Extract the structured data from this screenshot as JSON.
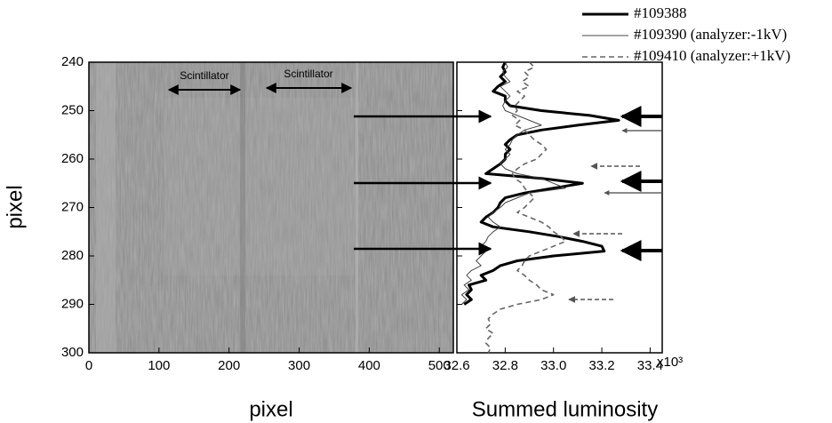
{
  "chart_data": [
    {
      "type": "image",
      "xlabel": "pixel",
      "ylabel": "pixel",
      "xlim": [
        0,
        520
      ],
      "xticks": [
        0,
        100,
        200,
        300,
        400,
        500
      ],
      "ylim": [
        240,
        300
      ],
      "yticks": [
        240,
        250,
        260,
        270,
        280,
        290,
        300
      ],
      "y_inverted": true,
      "annotations": [
        "Scintillator",
        "Scintillator"
      ]
    },
    {
      "type": "line",
      "xlabel": "Summed luminosity",
      "x_multiplier": "x10³",
      "xlim": [
        32.6,
        33.45
      ],
      "xticks": [
        32.6,
        32.8,
        {
          "value": 33,
          "label": "33.0"
        },
        33.2,
        33.4
      ],
      "ylim": [
        240,
        300
      ],
      "yticks": [
        240,
        250,
        260,
        270,
        280,
        290,
        300
      ],
      "y_inverted": true,
      "legend": "upper right",
      "y": [
        240,
        241,
        242,
        243,
        244,
        245,
        246,
        247,
        248,
        249,
        250,
        251,
        252,
        253,
        254,
        255,
        256,
        257,
        258,
        259,
        260,
        261,
        262,
        263,
        264,
        265,
        266,
        267,
        268,
        269,
        270,
        271,
        272,
        273,
        274,
        275,
        276,
        277,
        278,
        279,
        280,
        281,
        282,
        283,
        284,
        285,
        286,
        287,
        288,
        289,
        290,
        291,
        292,
        293,
        294,
        295,
        296,
        297,
        298,
        299,
        300
      ],
      "series": [
        {
          "name": "#109388",
          "color": "#000000",
          "width": 3,
          "dashed": false,
          "values": [
            32.8,
            32.79,
            32.8,
            32.78,
            32.8,
            32.77,
            32.75,
            32.8,
            32.8,
            32.82,
            32.95,
            33.15,
            33.27,
            33.1,
            32.95,
            32.85,
            32.82,
            32.8,
            32.82,
            32.8,
            32.8,
            32.78,
            32.75,
            32.72,
            32.95,
            33.12,
            33.0,
            32.88,
            32.8,
            32.78,
            32.77,
            32.75,
            32.72,
            32.7,
            32.75,
            32.9,
            33.02,
            33.12,
            33.2,
            33.21,
            33.0,
            32.85,
            32.78,
            32.75,
            32.7,
            32.72,
            32.65,
            32.66,
            32.64,
            32.66,
            32.63,
            null,
            null,
            null,
            null,
            null,
            null,
            null,
            null,
            null,
            null
          ]
        },
        {
          "name": "#109390 (analyzer:-1kV)",
          "color": "#444444",
          "width": 1,
          "dashed": false,
          "values": [
            32.8,
            32.81,
            32.79,
            32.8,
            32.82,
            32.78,
            32.8,
            32.82,
            32.8,
            32.79,
            32.8,
            32.85,
            32.9,
            32.95,
            32.88,
            32.85,
            32.83,
            32.82,
            32.8,
            32.82,
            32.8,
            32.78,
            32.8,
            32.85,
            32.95,
            33.0,
            33.05,
            32.9,
            32.85,
            32.8,
            32.78,
            32.75,
            32.73,
            32.75,
            32.78,
            32.75,
            32.73,
            32.72,
            32.7,
            32.72,
            32.7,
            32.68,
            32.7,
            32.66,
            32.64,
            32.66,
            32.63,
            32.65,
            32.62,
            32.64,
            32.62,
            null,
            null,
            null,
            null,
            null,
            null,
            null,
            null,
            null,
            null
          ]
        },
        {
          "name": "#109410 (analyzer:+1kV)",
          "color": "#666666",
          "width": 1.6,
          "dashed": true,
          "values": [
            32.9,
            32.92,
            32.88,
            32.9,
            32.87,
            32.9,
            32.85,
            32.88,
            32.86,
            32.84,
            32.85,
            32.83,
            32.86,
            32.84,
            32.88,
            32.9,
            32.92,
            32.95,
            32.97,
            32.95,
            32.93,
            32.88,
            32.85,
            32.83,
            32.84,
            32.87,
            32.88,
            32.9,
            32.92,
            32.9,
            32.88,
            32.85,
            32.9,
            32.95,
            32.98,
            33.0,
            33.03,
            33.05,
            33.0,
            32.95,
            32.9,
            32.88,
            32.87,
            32.85,
            32.88,
            32.9,
            32.93,
            32.95,
            33.0,
            32.95,
            32.85,
            32.78,
            32.75,
            32.73,
            32.74,
            32.72,
            32.75,
            32.73,
            32.72,
            32.74,
            32.73
          ]
        }
      ]
    }
  ]
}
